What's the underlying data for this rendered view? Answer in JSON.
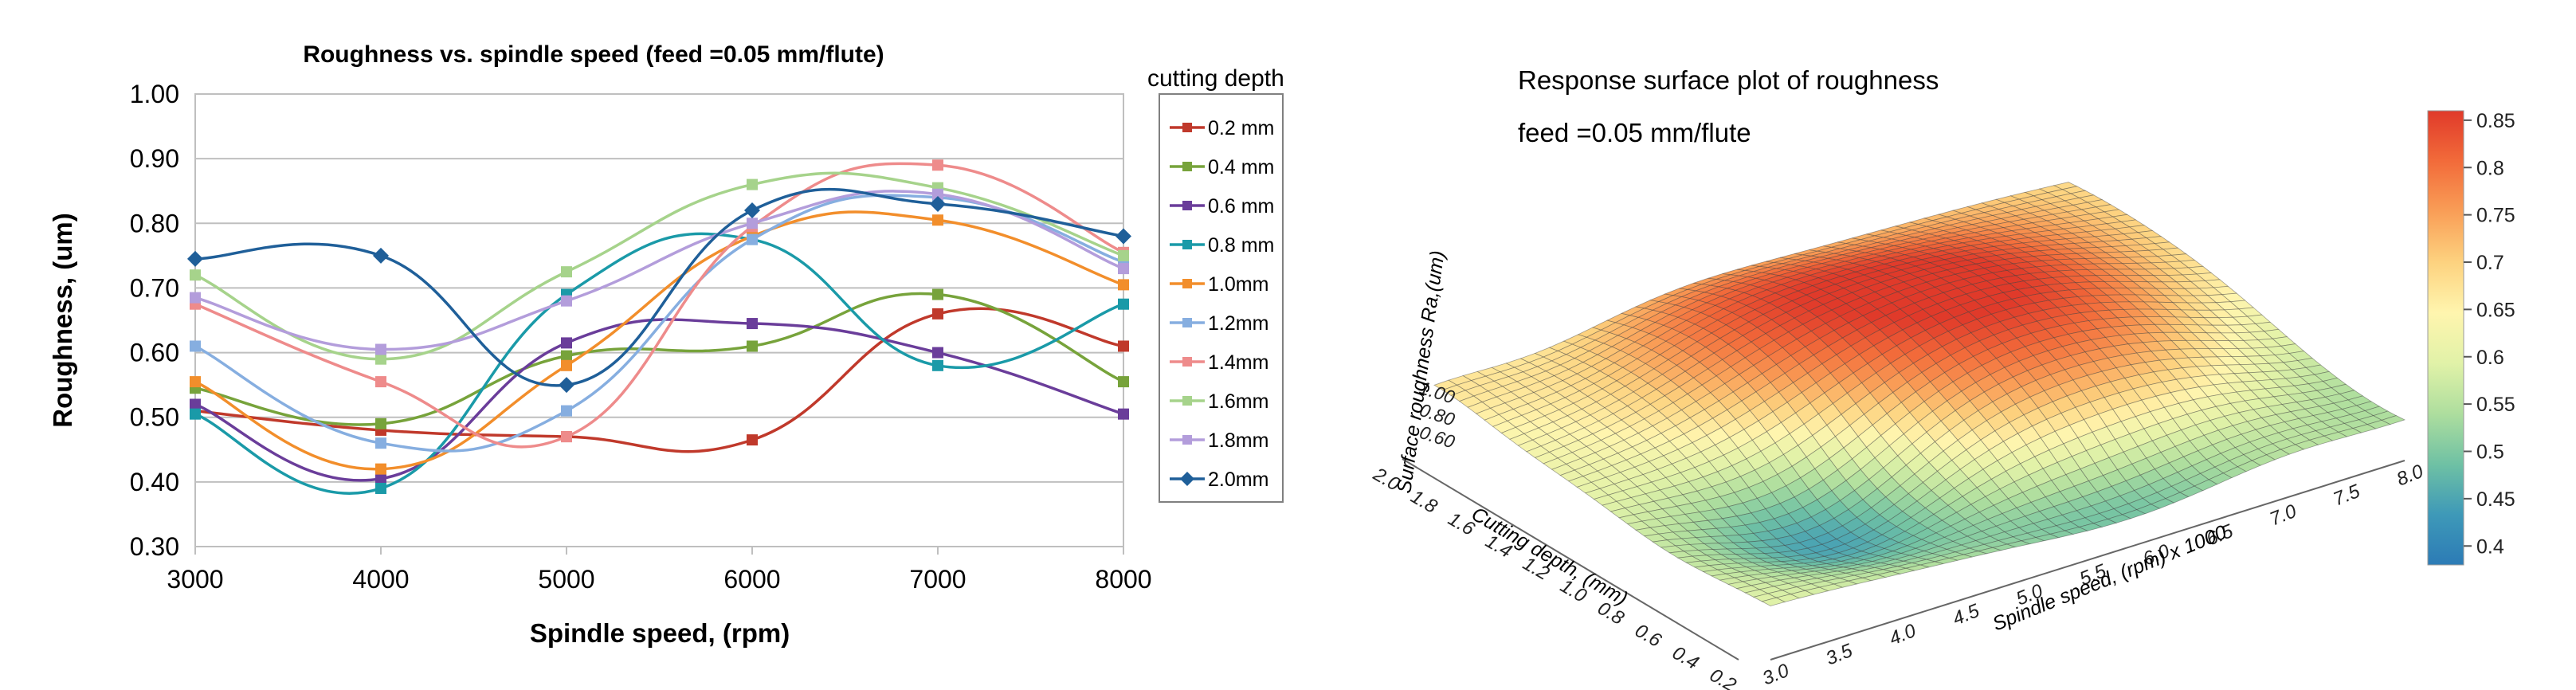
{
  "chart_data": [
    {
      "type": "line",
      "title": "Roughness vs. spindle speed  (feed =0.05 mm/flute)",
      "xlabel": "Spindle speed, (rpm)",
      "ylabel": "Roughness, (um)",
      "legend_title": "cutting depth",
      "legend_position": "right",
      "grid": true,
      "smooth": true,
      "x": [
        3000,
        4000,
        5000,
        6000,
        7000,
        8000
      ],
      "xlim": [
        3000,
        8000
      ],
      "ylim": [
        0.3,
        1.0
      ],
      "xticks": [
        "3000",
        "4000",
        "5000",
        "6000",
        "7000",
        "8000"
      ],
      "yticks": [
        "0.30",
        "0.40",
        "0.50",
        "0.60",
        "0.70",
        "0.80",
        "0.90",
        "1.00"
      ],
      "series": [
        {
          "name": "0.2 mm",
          "color": "#c0392b",
          "marker": "square",
          "values": [
            0.51,
            0.48,
            0.47,
            0.465,
            0.66,
            0.61
          ]
        },
        {
          "name": "0.4 mm",
          "color": "#77a33b",
          "marker": "square",
          "values": [
            0.545,
            0.49,
            0.595,
            0.61,
            0.69,
            0.555
          ]
        },
        {
          "name": "0.6 mm",
          "color": "#6a3d9a",
          "marker": "square",
          "values": [
            0.52,
            0.405,
            0.615,
            0.645,
            0.6,
            0.505
          ]
        },
        {
          "name": "0.8 mm",
          "color": "#1a9aa8",
          "marker": "square",
          "values": [
            0.505,
            0.39,
            0.69,
            0.775,
            0.58,
            0.675
          ]
        },
        {
          "name": "1.0mm",
          "color": "#f28e2b",
          "marker": "square",
          "values": [
            0.555,
            0.42,
            0.58,
            0.78,
            0.805,
            0.705
          ]
        },
        {
          "name": "1.2mm",
          "color": "#86aee0",
          "marker": "square",
          "values": [
            0.61,
            0.46,
            0.51,
            0.775,
            0.84,
            0.74
          ]
        },
        {
          "name": "1.4mm",
          "color": "#ee8b8b",
          "marker": "square",
          "values": [
            0.675,
            0.555,
            0.47,
            0.795,
            0.89,
            0.755
          ]
        },
        {
          "name": "1.6mm",
          "color": "#a6d38b",
          "marker": "square",
          "values": [
            0.72,
            0.59,
            0.725,
            0.86,
            0.855,
            0.75
          ]
        },
        {
          "name": "1.8mm",
          "color": "#b39ddb",
          "marker": "square",
          "values": [
            0.685,
            0.605,
            0.68,
            0.8,
            0.845,
            0.73
          ]
        },
        {
          "name": "2.0mm",
          "color": "#1f5f99",
          "marker": "diamond",
          "values": [
            0.745,
            0.75,
            0.55,
            0.82,
            0.83,
            0.78
          ]
        }
      ]
    },
    {
      "type": "surface",
      "title": "Response surface plot of roughness",
      "subtitle": "feed =0.05 mm/flute",
      "xlabel": "Spindle speed, (rpm) x 1000",
      "ylabel": "Cutting depth, (mm)",
      "zlabel": "Surface roughness Ra,(um)",
      "x_ticks": [
        "3.0",
        "3.5",
        "4.0",
        "4.5",
        "5.0",
        "5.5",
        "6.0",
        "6.5",
        "7.0",
        "7.5",
        "8.0"
      ],
      "y_ticks": [
        "0.2",
        "0.4",
        "0.6",
        "0.8",
        "1.0",
        "1.2",
        "1.4",
        "1.6",
        "1.8",
        "2.0"
      ],
      "z_ticks": [
        "0.60",
        "0.80",
        "1.00"
      ],
      "colorbar_ticks": [
        "0.85",
        "0.8",
        "0.75",
        "0.7",
        "0.65",
        "0.6",
        "0.55",
        "0.5",
        "0.45",
        "0.4"
      ],
      "colorbar_range": [
        0.38,
        0.86
      ],
      "colorbar_colors": [
        "#e03a2a",
        "#f26b3a",
        "#f99e57",
        "#fdd27f",
        "#fff5ae",
        "#e1f2a8",
        "#aede9e",
        "#6fc1a4",
        "#3e99b8",
        "#2c7bb6"
      ]
    }
  ]
}
